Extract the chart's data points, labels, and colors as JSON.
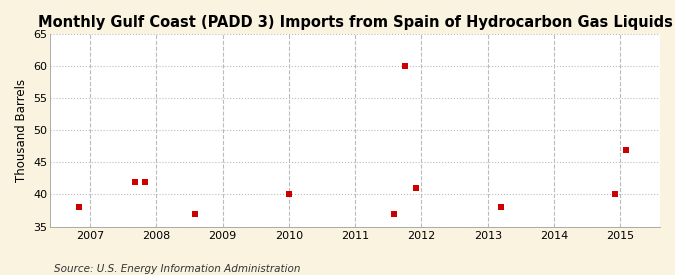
{
  "title": "Monthly Gulf Coast (PADD 3) Imports from Spain of Hydrocarbon Gas Liquids",
  "ylabel": "Thousand Barrels",
  "source": "Source: U.S. Energy Information Administration",
  "figure_bg_color": "#faf3e0",
  "plot_bg_color": "#ffffff",
  "point_color": "#cc0000",
  "x_data": [
    2006.83,
    2007.67,
    2007.83,
    2008.58,
    2010.0,
    2011.58,
    2011.75,
    2011.92,
    2013.2,
    2014.92,
    2015.08
  ],
  "y_data": [
    38,
    42,
    42,
    37,
    40,
    37,
    60,
    41,
    38,
    40,
    47
  ],
  "xlim": [
    2006.4,
    2015.6
  ],
  "ylim": [
    35,
    65
  ],
  "yticks": [
    35,
    40,
    45,
    50,
    55,
    60,
    65
  ],
  "xticks": [
    2007,
    2008,
    2009,
    2010,
    2011,
    2012,
    2013,
    2014,
    2015
  ],
  "grid_color": "#bbbbbb",
  "title_fontsize": 10.5,
  "label_fontsize": 8.5,
  "tick_fontsize": 8,
  "source_fontsize": 7.5,
  "marker_size": 18
}
